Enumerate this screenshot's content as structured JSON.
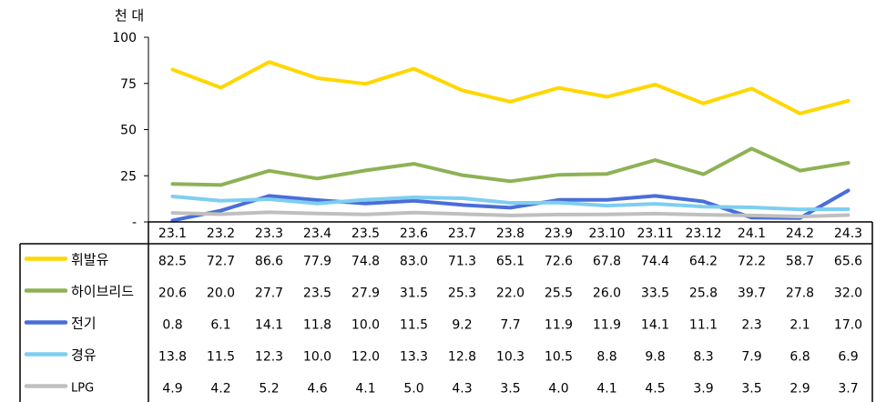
{
  "chart_data": {
    "type": "line",
    "unit_label": "천 대",
    "categories": [
      "23.1",
      "23.2",
      "23.3",
      "23.4",
      "23.5",
      "23.6",
      "23.7",
      "23.8",
      "23.9",
      "23.10",
      "23.11",
      "23.12",
      "24.1",
      "24.2",
      "24.3"
    ],
    "ylim": [
      0,
      100
    ],
    "y_ticks": [
      "100",
      "75",
      "50",
      "25",
      "-"
    ],
    "y_tick_values": [
      100,
      75,
      50,
      25,
      0
    ],
    "grid": false,
    "legend": "table-left",
    "series": [
      {
        "name": "휘발유",
        "color": "#FFD700",
        "values": [
          82.5,
          72.7,
          86.6,
          77.9,
          74.8,
          83.0,
          71.3,
          65.1,
          72.6,
          67.8,
          74.4,
          64.2,
          72.2,
          58.7,
          65.6
        ],
        "labels": [
          "82.5",
          "72.7",
          "86.6",
          "77.9",
          "74.8",
          "83.0",
          "71.3",
          "65.1",
          "72.6",
          "67.8",
          "74.4",
          "64.2",
          "72.2",
          "58.7",
          "65.6"
        ]
      },
      {
        "name": "하이브리드",
        "color": "#8DB254",
        "values": [
          20.6,
          20.0,
          27.7,
          23.5,
          27.9,
          31.5,
          25.3,
          22.0,
          25.5,
          26.0,
          33.5,
          25.8,
          39.7,
          27.8,
          32.0
        ],
        "labels": [
          "20.6",
          "20.0",
          "27.7",
          "23.5",
          "27.9",
          "31.5",
          "25.3",
          "22.0",
          "25.5",
          "26.0",
          "33.5",
          "25.8",
          "39.7",
          "27.8",
          "32.0"
        ]
      },
      {
        "name": "전기",
        "color": "#4A6ED8",
        "values": [
          0.8,
          6.1,
          14.1,
          11.8,
          10.0,
          11.5,
          9.2,
          7.7,
          11.9,
          11.9,
          14.1,
          11.1,
          2.3,
          2.1,
          17.0
        ],
        "labels": [
          "0.8",
          "6.1",
          "14.1",
          "11.8",
          "10.0",
          "11.5",
          "9.2",
          "7.7",
          "11.9",
          "11.9",
          "14.1",
          "11.1",
          "2.3",
          "2.1",
          "17.0"
        ]
      },
      {
        "name": "경유",
        "color": "#7ECEF0",
        "values": [
          13.8,
          11.5,
          12.3,
          10.0,
          12.0,
          13.3,
          12.8,
          10.3,
          10.5,
          8.8,
          9.8,
          8.3,
          7.9,
          6.8,
          6.9
        ],
        "labels": [
          "13.8",
          "11.5",
          "12.3",
          "10.0",
          "12.0",
          "13.3",
          "12.8",
          "10.3",
          "10.5",
          "8.8",
          "9.8",
          "8.3",
          "7.9",
          "6.8",
          "6.9"
        ]
      },
      {
        "name": "LPG",
        "color": "#BFBFBF",
        "values": [
          4.9,
          4.2,
          5.2,
          4.6,
          4.1,
          5.0,
          4.3,
          3.5,
          4.0,
          4.1,
          4.5,
          3.9,
          3.5,
          2.9,
          3.7
        ],
        "labels": [
          "4.9",
          "4.2",
          "5.2",
          "4.6",
          "4.1",
          "5.0",
          "4.3",
          "3.5",
          "4.0",
          "4.1",
          "4.5",
          "3.9",
          "3.5",
          "2.9",
          "3.7"
        ]
      }
    ]
  }
}
